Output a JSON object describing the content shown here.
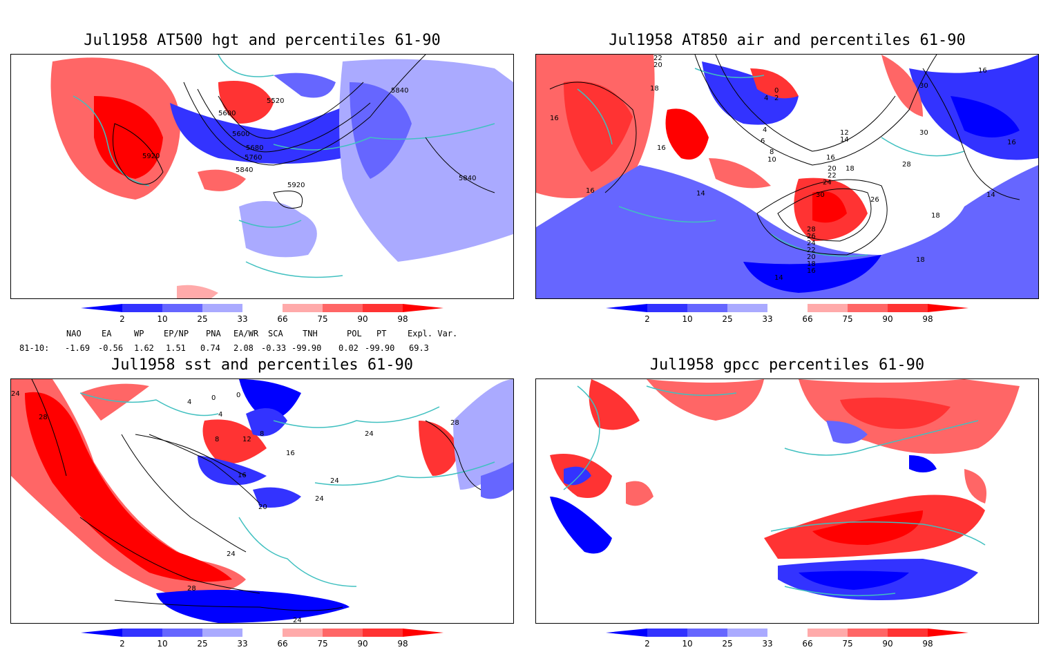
{
  "panels": [
    {
      "title": "Jul1958 AT500 hgt and percentiles 61-90",
      "contour_labels": [
        "5920",
        "5600",
        "5520",
        "5840",
        "5600",
        "5680",
        "5760",
        "5840",
        "5920",
        "5840"
      ]
    },
    {
      "title": "Jul1958 AT850 air and percentiles 61-90",
      "contour_labels": [
        "22",
        "20",
        "18",
        "16",
        "4",
        "0",
        "2",
        "4",
        "6",
        "8",
        "10",
        "12",
        "14",
        "16",
        "16",
        "14",
        "18",
        "20",
        "22",
        "24",
        "26",
        "28",
        "30",
        "30",
        "28",
        "26",
        "24",
        "22",
        "20",
        "18",
        "16",
        "14",
        "18",
        "18",
        "16",
        "16",
        "30",
        "16",
        "14"
      ]
    },
    {
      "title": "Jul1958 sst and percentiles 61-90",
      "contour_labels": [
        "24",
        "28",
        "4",
        "4",
        "0",
        "0",
        "8",
        "12",
        "8",
        "16",
        "16",
        "20",
        "24",
        "24",
        "24",
        "28",
        "24",
        "28",
        "24"
      ]
    },
    {
      "title": "Jul1958 gpcc percentiles 61-90",
      "contour_labels": []
    }
  ],
  "colorbar": {
    "labels": [
      "2",
      "10",
      "25",
      "33",
      "66",
      "75",
      "90",
      "98"
    ],
    "colors": [
      "#0000ff",
      "#3333ff",
      "#6666ff",
      "#aaaaff",
      "#ffaaaa",
      "#ff6666",
      "#ff3333",
      "#ff0000"
    ]
  },
  "indices": {
    "headers": [
      "NAO",
      "EA",
      "WP",
      "EP/NP",
      "PNA",
      "EA/WR",
      "SCA",
      "TNH",
      "POL",
      "PT",
      "Expl. Var."
    ],
    "row_label": "81-10:",
    "values": [
      "-1.69",
      "-0.56",
      "1.62",
      "1.51",
      "0.74",
      "2.08",
      "-0.33",
      "-99.90",
      "0.02",
      "-99.90",
      "69.3"
    ]
  }
}
